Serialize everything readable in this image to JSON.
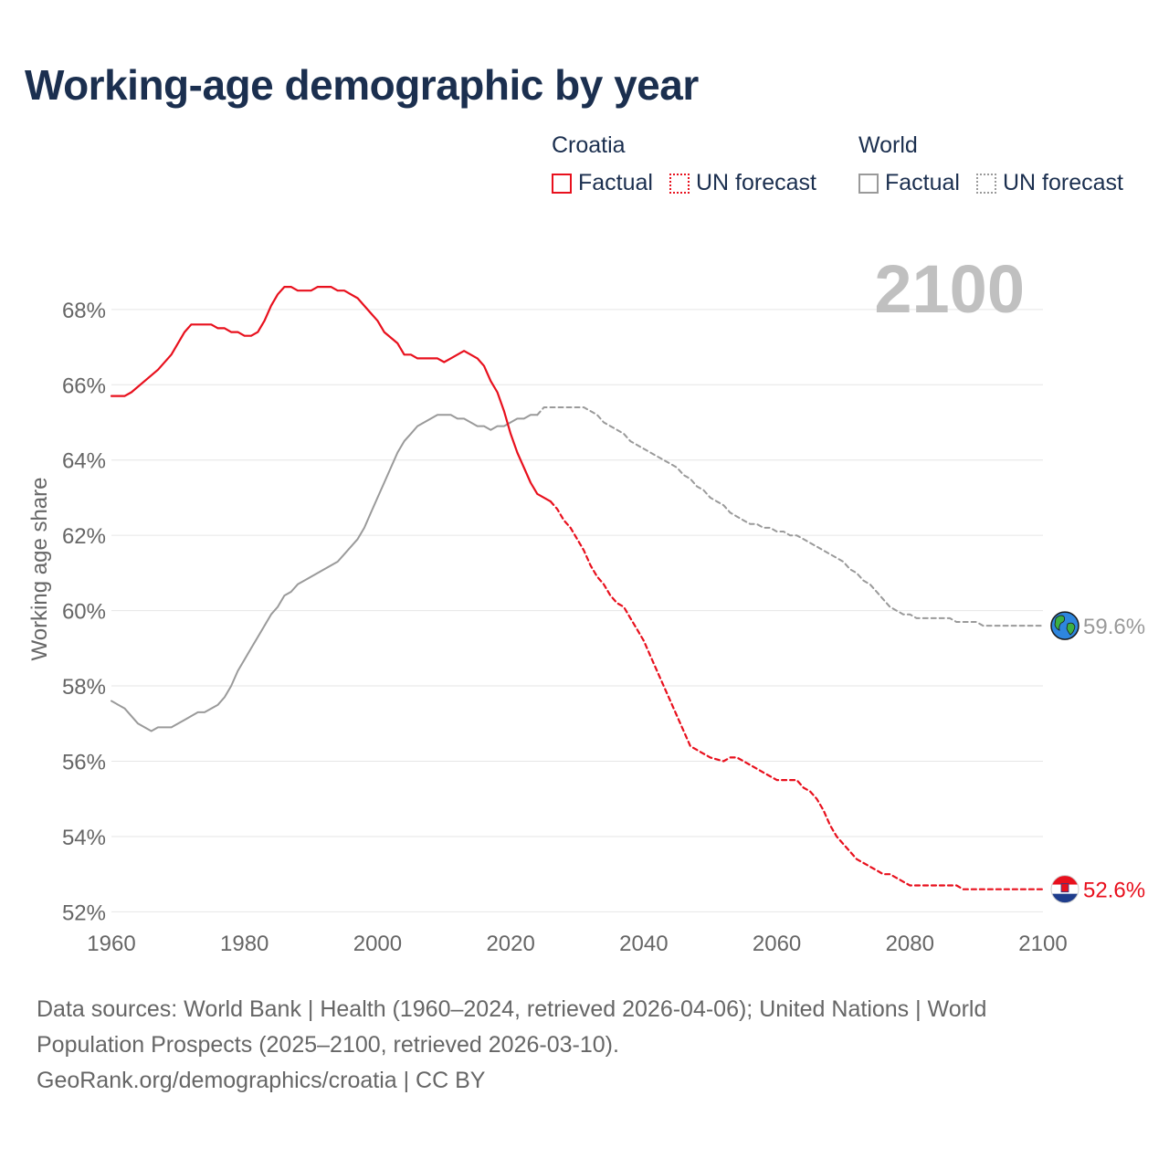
{
  "title": "Working-age demographic by year",
  "legend": {
    "groups": [
      {
        "name": "Croatia",
        "factual_label": "Factual",
        "forecast_label": "UN forecast"
      },
      {
        "name": "World",
        "factual_label": "Factual",
        "forecast_label": "UN forecast"
      }
    ]
  },
  "colors": {
    "croatia": "#e8101d",
    "world": "#9a9a9a",
    "grid": "#e6e6e6",
    "axis_text": "#666666",
    "year_watermark": "#c0c0c0"
  },
  "footer": {
    "line1": "Data sources: World Bank | Health (1960–2024, retrieved 2026-04-06); United Nations | World",
    "line2": "Population Prospects (2025–2100, retrieved 2026-03-10).",
    "line3": "GeoRank.org/demographics/croatia | CC BY"
  },
  "chart_data": {
    "type": "line",
    "title": "Working-age demographic by year",
    "current_year_label": "2100",
    "xlabel": "",
    "ylabel": "Working age share",
    "xlim": [
      1960,
      2100
    ],
    "ylim": [
      51.5,
      69.5
    ],
    "x_ticks": [
      1960,
      1980,
      2000,
      2020,
      2040,
      2060,
      2080,
      2100
    ],
    "y_ticks": [
      52,
      54,
      56,
      58,
      60,
      62,
      64,
      66,
      68
    ],
    "y_tick_suffix": "%",
    "grid": true,
    "series": [
      {
        "name": "Croatia",
        "segment": "Factual",
        "style": "solid",
        "color": "#e8101d",
        "points": [
          [
            1960,
            65.7
          ],
          [
            1962,
            65.7
          ],
          [
            1963,
            65.8
          ],
          [
            1965,
            66.1
          ],
          [
            1967,
            66.4
          ],
          [
            1969,
            66.8
          ],
          [
            1971,
            67.4
          ],
          [
            1972,
            67.6
          ],
          [
            1975,
            67.6
          ],
          [
            1976,
            67.5
          ],
          [
            1977,
            67.5
          ],
          [
            1978,
            67.4
          ],
          [
            1979,
            67.4
          ],
          [
            1980,
            67.3
          ],
          [
            1981,
            67.3
          ],
          [
            1982,
            67.4
          ],
          [
            1983,
            67.7
          ],
          [
            1984,
            68.1
          ],
          [
            1985,
            68.4
          ],
          [
            1986,
            68.6
          ],
          [
            1987,
            68.6
          ],
          [
            1988,
            68.5
          ],
          [
            1990,
            68.5
          ],
          [
            1991,
            68.6
          ],
          [
            1993,
            68.6
          ],
          [
            1994,
            68.5
          ],
          [
            1995,
            68.5
          ],
          [
            1997,
            68.3
          ],
          [
            1999,
            67.9
          ],
          [
            2000,
            67.7
          ],
          [
            2001,
            67.4
          ],
          [
            2003,
            67.1
          ],
          [
            2004,
            66.8
          ],
          [
            2005,
            66.8
          ],
          [
            2006,
            66.7
          ],
          [
            2009,
            66.7
          ],
          [
            2010,
            66.6
          ],
          [
            2011,
            66.7
          ],
          [
            2013,
            66.9
          ],
          [
            2015,
            66.7
          ],
          [
            2016,
            66.5
          ],
          [
            2017,
            66.1
          ],
          [
            2018,
            65.8
          ],
          [
            2019,
            65.3
          ],
          [
            2020,
            64.7
          ],
          [
            2021,
            64.2
          ],
          [
            2022,
            63.8
          ],
          [
            2023,
            63.4
          ],
          [
            2024,
            63.1
          ],
          [
            2025,
            63.0
          ],
          [
            2026,
            62.9
          ]
        ]
      },
      {
        "name": "Croatia",
        "segment": "UN forecast",
        "style": "dashed",
        "color": "#e8101d",
        "points": [
          [
            2026,
            62.9
          ],
          [
            2027,
            62.7
          ],
          [
            2028,
            62.4
          ],
          [
            2029,
            62.2
          ],
          [
            2030,
            61.9
          ],
          [
            2031,
            61.6
          ],
          [
            2032,
            61.2
          ],
          [
            2033,
            60.9
          ],
          [
            2034,
            60.7
          ],
          [
            2035,
            60.4
          ],
          [
            2036,
            60.2
          ],
          [
            2037,
            60.1
          ],
          [
            2038,
            59.8
          ],
          [
            2039,
            59.5
          ],
          [
            2040,
            59.2
          ],
          [
            2041,
            58.8
          ],
          [
            2042,
            58.4
          ],
          [
            2043,
            58.0
          ],
          [
            2044,
            57.6
          ],
          [
            2045,
            57.2
          ],
          [
            2046,
            56.8
          ],
          [
            2047,
            56.4
          ],
          [
            2048,
            56.3
          ],
          [
            2049,
            56.2
          ],
          [
            2050,
            56.1
          ],
          [
            2052,
            56.0
          ],
          [
            2053,
            56.1
          ],
          [
            2054,
            56.1
          ],
          [
            2055,
            56.0
          ],
          [
            2056,
            55.9
          ],
          [
            2057,
            55.8
          ],
          [
            2058,
            55.7
          ],
          [
            2059,
            55.6
          ],
          [
            2060,
            55.5
          ],
          [
            2063,
            55.5
          ],
          [
            2064,
            55.3
          ],
          [
            2065,
            55.2
          ],
          [
            2066,
            55.0
          ],
          [
            2067,
            54.7
          ],
          [
            2068,
            54.3
          ],
          [
            2069,
            54.0
          ],
          [
            2070,
            53.8
          ],
          [
            2071,
            53.6
          ],
          [
            2072,
            53.4
          ],
          [
            2073,
            53.3
          ],
          [
            2074,
            53.2
          ],
          [
            2075,
            53.1
          ],
          [
            2076,
            53.0
          ],
          [
            2077,
            53.0
          ],
          [
            2078,
            52.9
          ],
          [
            2079,
            52.8
          ],
          [
            2080,
            52.7
          ],
          [
            2081,
            52.7
          ],
          [
            2086,
            52.7
          ],
          [
            2087,
            52.7
          ],
          [
            2088,
            52.6
          ],
          [
            2089,
            52.6
          ],
          [
            2090,
            52.6
          ],
          [
            2100,
            52.6
          ]
        ]
      },
      {
        "name": "World",
        "segment": "Factual",
        "style": "solid",
        "color": "#9a9a9a",
        "points": [
          [
            1960,
            57.6
          ],
          [
            1962,
            57.4
          ],
          [
            1964,
            57.0
          ],
          [
            1966,
            56.8
          ],
          [
            1967,
            56.9
          ],
          [
            1969,
            56.9
          ],
          [
            1971,
            57.1
          ],
          [
            1973,
            57.3
          ],
          [
            1974,
            57.3
          ],
          [
            1976,
            57.5
          ],
          [
            1977,
            57.7
          ],
          [
            1978,
            58.0
          ],
          [
            1979,
            58.4
          ],
          [
            1980,
            58.7
          ],
          [
            1981,
            59.0
          ],
          [
            1982,
            59.3
          ],
          [
            1983,
            59.6
          ],
          [
            1984,
            59.9
          ],
          [
            1985,
            60.1
          ],
          [
            1986,
            60.4
          ],
          [
            1987,
            60.5
          ],
          [
            1988,
            60.7
          ],
          [
            1990,
            60.9
          ],
          [
            1993,
            61.2
          ],
          [
            1994,
            61.3
          ],
          [
            1995,
            61.5
          ],
          [
            1997,
            61.9
          ],
          [
            1998,
            62.2
          ],
          [
            1999,
            62.6
          ],
          [
            2000,
            63.0
          ],
          [
            2001,
            63.4
          ],
          [
            2002,
            63.8
          ],
          [
            2003,
            64.2
          ],
          [
            2004,
            64.5
          ],
          [
            2005,
            64.7
          ],
          [
            2006,
            64.9
          ],
          [
            2007,
            65.0
          ],
          [
            2008,
            65.1
          ],
          [
            2009,
            65.2
          ],
          [
            2010,
            65.2
          ],
          [
            2011,
            65.2
          ],
          [
            2012,
            65.1
          ],
          [
            2013,
            65.1
          ],
          [
            2014,
            65.0
          ],
          [
            2015,
            64.9
          ],
          [
            2016,
            64.9
          ],
          [
            2017,
            64.8
          ],
          [
            2018,
            64.9
          ],
          [
            2019,
            64.9
          ],
          [
            2020,
            65.0
          ],
          [
            2021,
            65.1
          ],
          [
            2022,
            65.1
          ],
          [
            2023,
            65.2
          ],
          [
            2024,
            65.2
          ]
        ]
      },
      {
        "name": "World",
        "segment": "UN forecast",
        "style": "dashed",
        "color": "#9a9a9a",
        "points": [
          [
            2024,
            65.2
          ],
          [
            2025,
            65.4
          ],
          [
            2026,
            65.4
          ],
          [
            2031,
            65.4
          ],
          [
            2032,
            65.3
          ],
          [
            2033,
            65.2
          ],
          [
            2034,
            65.0
          ],
          [
            2035,
            64.9
          ],
          [
            2036,
            64.8
          ],
          [
            2037,
            64.7
          ],
          [
            2038,
            64.5
          ],
          [
            2039,
            64.4
          ],
          [
            2040,
            64.3
          ],
          [
            2041,
            64.2
          ],
          [
            2042,
            64.1
          ],
          [
            2043,
            64.0
          ],
          [
            2044,
            63.9
          ],
          [
            2045,
            63.8
          ],
          [
            2046,
            63.6
          ],
          [
            2047,
            63.5
          ],
          [
            2048,
            63.3
          ],
          [
            2049,
            63.2
          ],
          [
            2050,
            63.0
          ],
          [
            2051,
            62.9
          ],
          [
            2052,
            62.8
          ],
          [
            2053,
            62.6
          ],
          [
            2054,
            62.5
          ],
          [
            2055,
            62.4
          ],
          [
            2056,
            62.3
          ],
          [
            2057,
            62.3
          ],
          [
            2058,
            62.2
          ],
          [
            2059,
            62.2
          ],
          [
            2060,
            62.1
          ],
          [
            2061,
            62.1
          ],
          [
            2062,
            62.0
          ],
          [
            2063,
            62.0
          ],
          [
            2064,
            61.9
          ],
          [
            2065,
            61.8
          ],
          [
            2066,
            61.7
          ],
          [
            2067,
            61.6
          ],
          [
            2068,
            61.5
          ],
          [
            2069,
            61.4
          ],
          [
            2070,
            61.3
          ],
          [
            2071,
            61.1
          ],
          [
            2072,
            61.0
          ],
          [
            2073,
            60.8
          ],
          [
            2074,
            60.7
          ],
          [
            2075,
            60.5
          ],
          [
            2076,
            60.3
          ],
          [
            2077,
            60.1
          ],
          [
            2078,
            60.0
          ],
          [
            2079,
            59.9
          ],
          [
            2080,
            59.9
          ],
          [
            2081,
            59.8
          ],
          [
            2082,
            59.8
          ],
          [
            2083,
            59.8
          ],
          [
            2086,
            59.8
          ],
          [
            2087,
            59.7
          ],
          [
            2088,
            59.7
          ],
          [
            2089,
            59.7
          ],
          [
            2090,
            59.7
          ],
          [
            2091,
            59.6
          ],
          [
            2092,
            59.6
          ],
          [
            2093,
            59.6
          ],
          [
            2094,
            59.6
          ],
          [
            2095,
            59.6
          ],
          [
            2100,
            59.6
          ]
        ]
      }
    ],
    "end_labels": [
      {
        "series": "World",
        "value": 59.6,
        "label": "59.6%",
        "icon": "globe-icon",
        "color": "#999999"
      },
      {
        "series": "Croatia",
        "value": 52.6,
        "label": "52.6%",
        "icon": "croatia-flag-icon",
        "color": "#e8101d"
      }
    ]
  }
}
